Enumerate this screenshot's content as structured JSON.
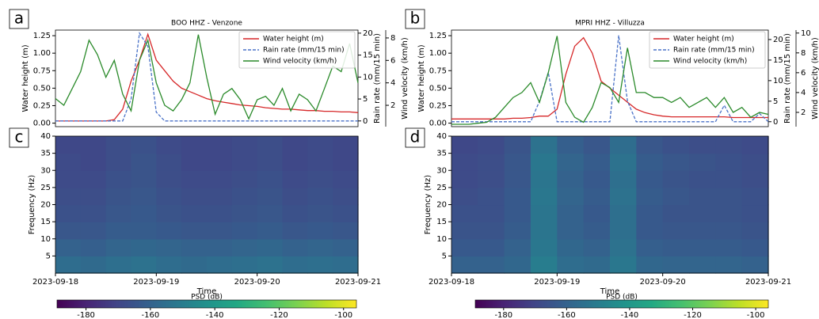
{
  "chart_data": [
    {
      "type": "line",
      "panel_label": "a",
      "title": "BOO HHZ - Venzone",
      "xlim": [
        "2023-09-18",
        "2023-09-21"
      ],
      "ylabel": "Water height (m)",
      "ylim": [
        -0.05,
        1.33
      ],
      "yticks": [
        {
          "value": 0,
          "label": "0.00"
        },
        0.25,
        {
          "value": 0.5,
          "label": "0.50"
        },
        0.75,
        {
          "value": 1,
          "label": "1.00"
        },
        1.25
      ],
      "y2label": "Rain rate (mm/15 min)",
      "y2lim": [
        -1.3,
        20.7
      ],
      "y2ticks": [
        0,
        5,
        10,
        15,
        20
      ],
      "y3label": "Wind velocity (km/h)",
      "y3lim": [
        0.1,
        8.7
      ],
      "y3ticks": [
        2,
        4,
        6,
        8
      ],
      "legend": "upper right",
      "series": [
        {
          "name": "Water height (m)",
          "color": "#d62728",
          "axis": "y",
          "linestyle": "solid",
          "values": [
            0.03,
            0.03,
            0.03,
            0.03,
            0.03,
            0.03,
            0.03,
            0.05,
            0.2,
            0.6,
            0.9,
            1.27,
            0.9,
            0.75,
            0.6,
            0.5,
            0.45,
            0.4,
            0.35,
            0.32,
            0.3,
            0.28,
            0.26,
            0.25,
            0.24,
            0.22,
            0.21,
            0.2,
            0.2,
            0.19,
            0.18,
            0.18,
            0.17,
            0.17,
            0.16,
            0.16,
            0.15
          ]
        },
        {
          "name": "Rain rate (mm/15 min)",
          "color": "#4a72c8",
          "axis": "y2",
          "linestyle": "dashed",
          "values": [
            0,
            0,
            0,
            0,
            0,
            0,
            0,
            0,
            0,
            5,
            20,
            17,
            2,
            0,
            0,
            0,
            0,
            0,
            0,
            0,
            0,
            0,
            0,
            0,
            0,
            0,
            0,
            0,
            0,
            0,
            0,
            0,
            0,
            0,
            0,
            0,
            0
          ]
        },
        {
          "name": "Wind velocity (km/h)",
          "color": "#2a8a2a",
          "axis": "y3",
          "linestyle": "solid",
          "values": [
            2.6,
            2.0,
            3.5,
            5,
            7.8,
            6.5,
            4.5,
            6,
            3,
            1.5,
            6,
            7.8,
            4,
            2,
            1.5,
            2.5,
            4,
            8.3,
            4.5,
            1.2,
            3,
            3.5,
            2.5,
            0.8,
            2.5,
            2.8,
            2,
            3.5,
            1.5,
            3,
            2.5,
            1.5,
            3.5,
            5.5,
            5,
            7.5,
            4
          ]
        }
      ]
    },
    {
      "type": "line",
      "panel_label": "b",
      "title": "MPRI HHZ - Villuzza",
      "xlim": [
        "2023-09-18",
        "2023-09-21"
      ],
      "ylabel": "Water height (m)",
      "ylim": [
        -0.05,
        1.33
      ],
      "yticks": [
        {
          "value": 0,
          "label": "0.00"
        },
        0.25,
        {
          "value": 0.5,
          "label": "0.50"
        },
        0.75,
        {
          "value": 1,
          "label": "1.00"
        },
        1.25
      ],
      "y2label": "Rain rate (mm/15 min)",
      "y2lim": [
        -1.2,
        22.3
      ],
      "y2ticks": [
        0,
        5,
        10,
        15,
        20
      ],
      "y3label": "Wind velocity (km/h)",
      "y3lim": [
        0.56,
        10.3
      ],
      "y3ticks": [
        2,
        4,
        6,
        8,
        10
      ],
      "legend": "upper right",
      "series": [
        {
          "name": "Water height (m)",
          "color": "#d62728",
          "axis": "y",
          "linestyle": "solid",
          "values": [
            0.06,
            0.06,
            0.06,
            0.06,
            0.06,
            0.06,
            0.06,
            0.07,
            0.07,
            0.08,
            0.1,
            0.1,
            0.2,
            0.7,
            1.1,
            1.22,
            1.0,
            0.6,
            0.5,
            0.4,
            0.3,
            0.2,
            0.15,
            0.12,
            0.1,
            0.09,
            0.09,
            0.09,
            0.09,
            0.09,
            0.09,
            0.09,
            0.08,
            0.08,
            0.08,
            0.08,
            0.08
          ]
        },
        {
          "name": "Rain rate (mm/15 min)",
          "color": "#4a72c8",
          "axis": "y2",
          "linestyle": "dashed",
          "values": [
            0,
            0,
            0,
            0,
            0,
            0,
            0,
            0,
            0,
            0,
            5,
            12,
            0,
            0,
            0,
            0,
            0,
            0,
            0,
            21,
            5,
            0,
            0,
            0,
            0,
            0,
            0,
            0,
            0,
            0,
            0,
            4,
            0,
            0,
            0,
            2,
            0
          ]
        },
        {
          "name": "Wind velocity (km/h)",
          "color": "#2a8a2a",
          "axis": "y3",
          "linestyle": "solid",
          "values": [
            0.8,
            0.8,
            0.8,
            0.9,
            1,
            1.5,
            2.5,
            3.5,
            4,
            5,
            3,
            6,
            9.7,
            3,
            1.5,
            1,
            2.5,
            5,
            4.5,
            3,
            8.5,
            4,
            4,
            3.5,
            3.5,
            3,
            3.5,
            2.5,
            3,
            3.5,
            2.5,
            3.5,
            2,
            2.5,
            1.5,
            2,
            1.8
          ]
        }
      ]
    },
    {
      "type": "heatmap",
      "panel_label": "c",
      "xlim": [
        "2023-09-18",
        "2023-09-21"
      ],
      "xticks": [
        "2023-09-18",
        "2023-09-19",
        "2023-09-20",
        "2023-09-21"
      ],
      "xlabel": "Time",
      "ylabel": "Frequency (Hz)",
      "ylim": [
        0,
        40
      ],
      "yticks": [
        5,
        10,
        15,
        20,
        25,
        30,
        35,
        40
      ],
      "colormap": "viridis",
      "colorbar": {
        "label": "PSD (dB)",
        "lim": [
          -189,
          -96
        ],
        "ticks": [
          -180,
          -160,
          -140,
          -120,
          -100
        ]
      },
      "z": [
        [
          -156,
          -157,
          -155,
          -154,
          -156,
          -157,
          -156,
          -155,
          -154,
          -156,
          -155,
          -156
        ],
        [
          -160,
          -161,
          -159,
          -158,
          -159,
          -160,
          -160,
          -159,
          -158,
          -160,
          -159,
          -160
        ],
        [
          -164,
          -164,
          -162,
          -162,
          -163,
          -164,
          -164,
          -163,
          -162,
          -164,
          -163,
          -164
        ],
        [
          -166,
          -166,
          -164,
          -163,
          -165,
          -166,
          -166,
          -165,
          -164,
          -166,
          -165,
          -166
        ],
        [
          -167,
          -167,
          -165,
          -164,
          -166,
          -167,
          -167,
          -166,
          -165,
          -167,
          -166,
          -167
        ],
        [
          -168,
          -168,
          -166,
          -165,
          -167,
          -168,
          -168,
          -167,
          -166,
          -168,
          -167,
          -168
        ],
        [
          -168,
          -169,
          -167,
          -165,
          -167,
          -169,
          -169,
          -168,
          -167,
          -169,
          -168,
          -169
        ],
        [
          -169,
          -169,
          -167,
          -166,
          -168,
          -169,
          -169,
          -168,
          -167,
          -169,
          -168,
          -169
        ]
      ]
    },
    {
      "type": "heatmap",
      "panel_label": "d",
      "xlim": [
        "2023-09-18",
        "2023-09-21"
      ],
      "xticks": [
        "2023-09-18",
        "2023-09-19",
        "2023-09-20",
        "2023-09-21"
      ],
      "xlabel": "Time",
      "ylabel": "Frequency (Hz)",
      "ylim": [
        0,
        40
      ],
      "yticks": [
        5,
        10,
        15,
        20,
        25,
        30,
        35,
        40
      ],
      "colormap": "viridis",
      "colorbar": {
        "label": "PSD (dB)",
        "lim": [
          -189,
          -96
        ],
        "ticks": [
          -180,
          -160,
          -140,
          -120,
          -100
        ]
      },
      "z": [
        [
          -160,
          -160,
          -158,
          -150,
          -156,
          -157,
          -152,
          -158,
          -159,
          -159,
          -159,
          -160
        ],
        [
          -163,
          -163,
          -160,
          -152,
          -158,
          -160,
          -154,
          -161,
          -162,
          -162,
          -162,
          -163
        ],
        [
          -165,
          -165,
          -162,
          -153,
          -160,
          -162,
          -155,
          -163,
          -164,
          -164,
          -164,
          -165
        ],
        [
          -166,
          -166,
          -163,
          -153,
          -160,
          -163,
          -155,
          -163,
          -165,
          -165,
          -165,
          -166
        ],
        [
          -167,
          -166,
          -163,
          -152,
          -159,
          -162,
          -154,
          -162,
          -164,
          -165,
          -165,
          -166
        ],
        [
          -168,
          -167,
          -164,
          -153,
          -160,
          -163,
          -155,
          -163,
          -165,
          -166,
          -166,
          -167
        ],
        [
          -168,
          -167,
          -164,
          -152,
          -159,
          -162,
          -154,
          -162,
          -164,
          -165,
          -166,
          -167
        ],
        [
          -169,
          -168,
          -165,
          -154,
          -161,
          -164,
          -156,
          -164,
          -166,
          -167,
          -167,
          -168
        ]
      ]
    }
  ]
}
